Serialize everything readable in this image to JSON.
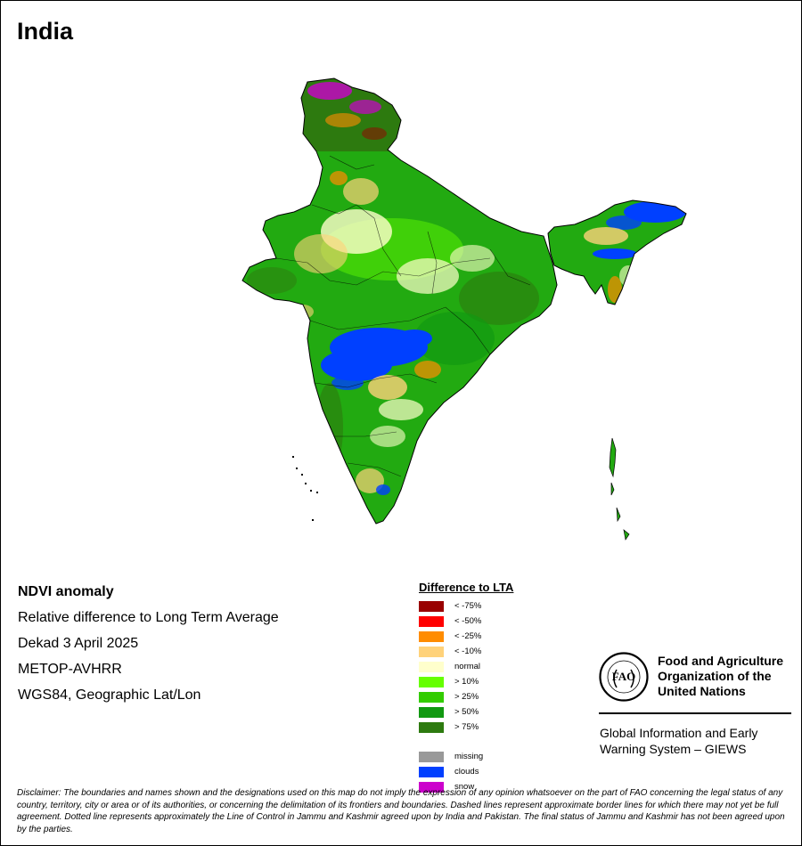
{
  "title": "India",
  "info": {
    "heading": "NDVI anomaly",
    "lines": [
      "Relative difference to Long Term Average",
      "Dekad 3 April 2025",
      "METOP-AVHRR",
      "WGS84, Geographic Lat/Lon"
    ]
  },
  "legend": {
    "title": "Difference to LTA",
    "items": [
      {
        "label": "< -75%",
        "color": "#990000"
      },
      {
        "label": "< -50%",
        "color": "#ff0000"
      },
      {
        "label": "< -25%",
        "color": "#ff8c00"
      },
      {
        "label": "< -10%",
        "color": "#ffd27a"
      },
      {
        "label": "normal",
        "color": "#ffffcc"
      },
      {
        "label": "> 10%",
        "color": "#66ff00"
      },
      {
        "label": "> 25%",
        "color": "#33cc00"
      },
      {
        "label": "> 50%",
        "color": "#119911"
      },
      {
        "label": "> 75%",
        "color": "#2d7a0f"
      }
    ],
    "extra": [
      {
        "label": "missing",
        "color": "#999999"
      },
      {
        "label": "clouds",
        "color": "#0040ff"
      },
      {
        "label": "snow",
        "color": "#cc00cc"
      }
    ]
  },
  "logo": {
    "letters": "FAO",
    "org_name": "Food and Agriculture Organization of the United Nations",
    "system_name": "Global Information and Early Warning System – GIEWS"
  },
  "disclaimer": "Disclaimer: The boundaries and names shown and the designations used on this map do not imply the expression of any opinion whatsoever on the part of FAO concerning the legal status of any country, territory, city or area or of its authorities, or concerning the delimitation of its frontiers and boundaries. Dashed lines represent approximate border lines for which there may not yet be full agreement. Dotted line represents approximately the Line of Control in Jammu and Kashmir agreed upon by India and Pakistan. The final status of Jammu and Kashmir has not been agreed upon by the parties."
}
